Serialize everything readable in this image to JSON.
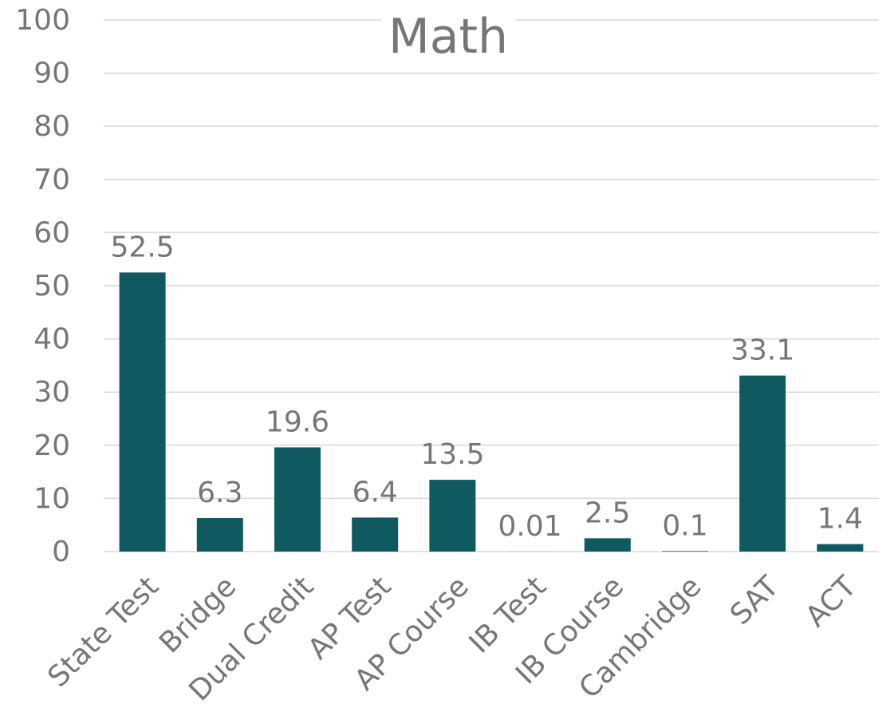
{
  "chart_data": {
    "type": "bar",
    "title": "Math",
    "categories": [
      "State Test",
      "Bridge",
      "Dual Credit",
      "AP Test",
      "AP Course",
      "IB Test",
      "IB Course",
      "Cambridge",
      "SAT",
      "ACT"
    ],
    "series": [
      {
        "values": [
          52.5,
          6.3,
          19.6,
          6.4,
          13.5,
          0.01,
          2.5,
          0.1,
          33.1,
          1.4
        ],
        "labels": [
          "52.5",
          "6.3",
          "19.6",
          "6.4",
          "13.5",
          "0.01",
          "2.5",
          "0.1",
          "33.1",
          "1.4"
        ]
      }
    ],
    "ylim": [
      0,
      100
    ],
    "yticks": [
      0,
      10,
      20,
      30,
      40,
      50,
      60,
      70,
      80,
      90,
      100
    ],
    "grid": true,
    "legend": "none",
    "colors": {
      "bar": "#0f5961",
      "grid": "#d9d9d9",
      "text": "#767676"
    }
  }
}
